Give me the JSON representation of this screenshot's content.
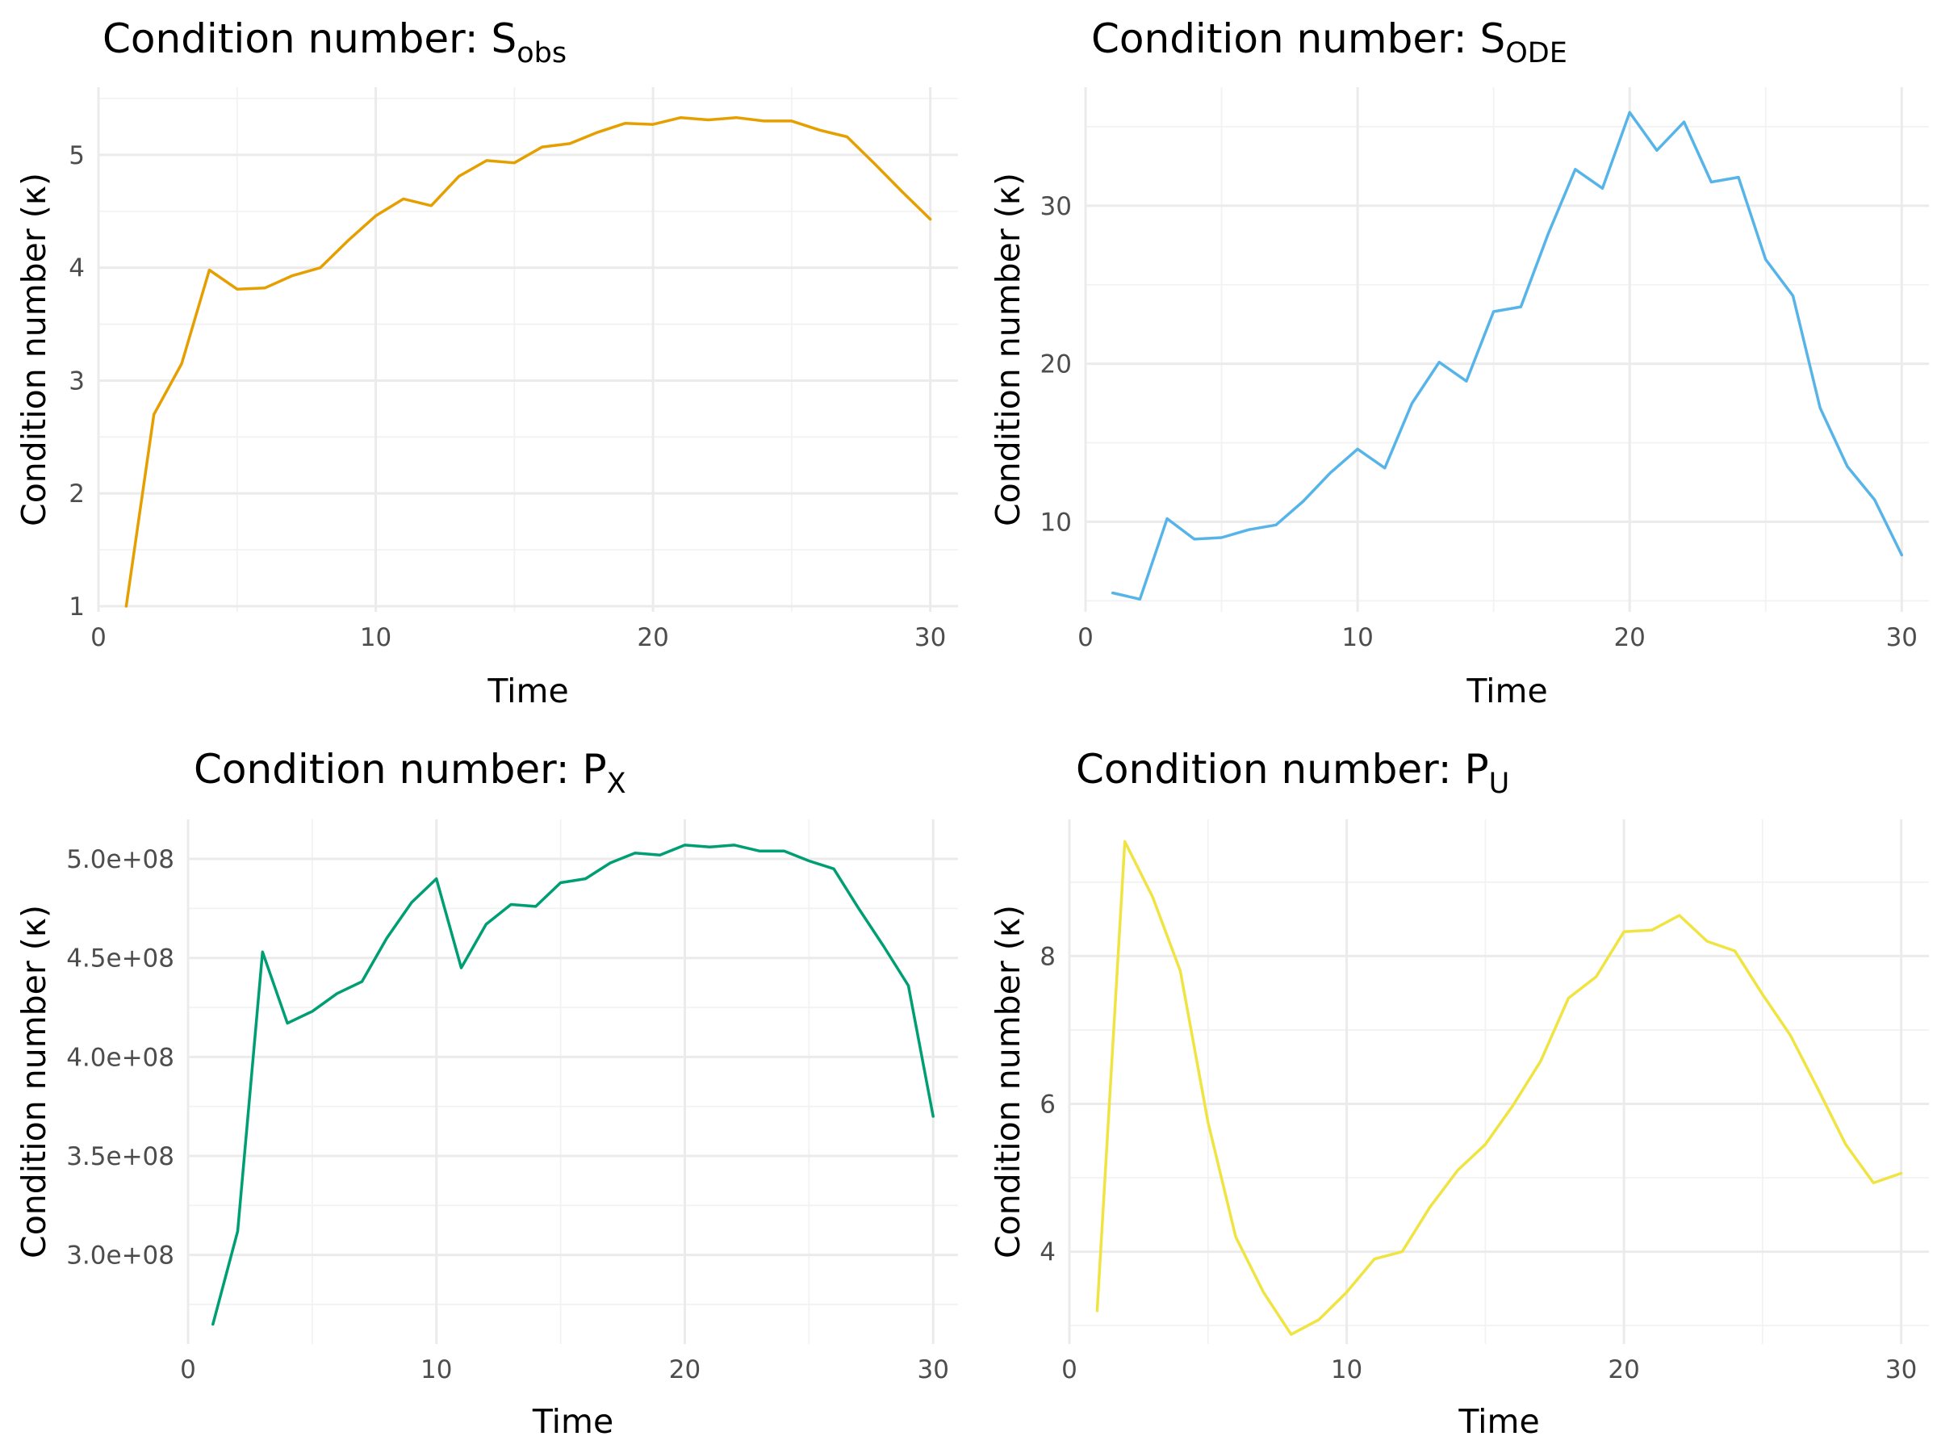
{
  "chart_data": [
    {
      "type": "line",
      "title": "Condition number: S",
      "title_sub": "obs",
      "xlabel": "Time",
      "ylabel": "Condition number (κ)",
      "xlim": [
        0,
        31
      ],
      "ylim": [
        0.95,
        5.6
      ],
      "xticks": [
        0,
        10,
        20,
        30
      ],
      "xtick_labels": [
        "0",
        "10",
        "20",
        "30"
      ],
      "yticks": [
        1,
        2,
        3,
        4,
        5
      ],
      "ytick_labels": [
        "1",
        "2",
        "3",
        "4",
        "5"
      ],
      "grid": true,
      "color": "#E69F00",
      "x": [
        1,
        2,
        3,
        4,
        5,
        6,
        7,
        8,
        9,
        10,
        11,
        12,
        13,
        14,
        15,
        16,
        17,
        18,
        19,
        20,
        21,
        22,
        23,
        24,
        25,
        26,
        27,
        28,
        29,
        30
      ],
      "values": [
        1.0,
        2.7,
        3.15,
        3.98,
        3.81,
        3.82,
        3.93,
        4.0,
        4.24,
        4.46,
        4.61,
        4.55,
        4.81,
        4.95,
        4.93,
        5.07,
        5.1,
        5.2,
        5.28,
        5.27,
        5.33,
        5.31,
        5.33,
        5.3,
        5.3,
        5.22,
        5.16,
        4.92,
        4.67,
        4.43
      ]
    },
    {
      "type": "line",
      "title": "Condition number: S",
      "title_sub": "ODE",
      "xlabel": "Time",
      "ylabel": "Condition number (κ)",
      "xlim": [
        0,
        31
      ],
      "ylim": [
        4.3,
        37.5
      ],
      "xticks": [
        0,
        10,
        20,
        30
      ],
      "xtick_labels": [
        "0",
        "10",
        "20",
        "30"
      ],
      "yticks": [
        10,
        20,
        30
      ],
      "ytick_labels": [
        "10",
        "20",
        "30"
      ],
      "grid": true,
      "color": "#56B4E9",
      "x": [
        1,
        2,
        3,
        4,
        5,
        6,
        7,
        8,
        9,
        10,
        11,
        12,
        13,
        14,
        15,
        16,
        17,
        18,
        19,
        20,
        21,
        22,
        23,
        24,
        25,
        26,
        27,
        28,
        29,
        30
      ],
      "values": [
        5.5,
        5.1,
        10.2,
        8.9,
        9.0,
        9.5,
        9.8,
        11.3,
        13.1,
        14.6,
        13.4,
        17.5,
        20.1,
        18.9,
        23.3,
        23.6,
        28.2,
        32.3,
        31.1,
        35.9,
        33.5,
        35.3,
        31.5,
        31.8,
        26.6,
        24.3,
        17.2,
        13.5,
        11.4,
        7.9
      ]
    },
    {
      "type": "line",
      "title": "Condition number: P",
      "title_sub": "X",
      "xlabel": "Time",
      "ylabel": "Condition number (κ)",
      "xlim": [
        0,
        31
      ],
      "ylim": [
        255000000.0,
        520000000.0
      ],
      "xticks": [
        0,
        10,
        20,
        30
      ],
      "xtick_labels": [
        "0",
        "10",
        "20",
        "30"
      ],
      "yticks": [
        300000000.0,
        350000000.0,
        400000000.0,
        450000000.0,
        500000000.0
      ],
      "ytick_labels": [
        "3.0e+08",
        "3.5e+08",
        "4.0e+08",
        "4.5e+08",
        "5.0e+08"
      ],
      "grid": true,
      "color": "#009E73",
      "x": [
        1,
        2,
        3,
        4,
        5,
        6,
        7,
        8,
        9,
        10,
        11,
        12,
        13,
        14,
        15,
        16,
        17,
        18,
        19,
        20,
        21,
        22,
        23,
        24,
        25,
        26,
        27,
        28,
        29,
        30
      ],
      "values": [
        265000000.0,
        312000000.0,
        453000000.0,
        417000000.0,
        423000000.0,
        432000000.0,
        438000000.0,
        460000000.0,
        478000000.0,
        490000000.0,
        445000000.0,
        467000000.0,
        477000000.0,
        476000000.0,
        488000000.0,
        490000000.0,
        498000000.0,
        503000000.0,
        502000000.0,
        507000000.0,
        506000000.0,
        507000000.0,
        504000000.0,
        504000000.0,
        499000000.0,
        495000000.0,
        475000000.0,
        456000000.0,
        436000000.0,
        370000000.0
      ]
    },
    {
      "type": "line",
      "title": "Condition number: P",
      "title_sub": "U",
      "xlabel": "Time",
      "ylabel": "Condition number (κ)",
      "xlim": [
        0,
        31
      ],
      "ylim": [
        2.75,
        9.85
      ],
      "xticks": [
        0,
        10,
        20,
        30
      ],
      "xtick_labels": [
        "0",
        "10",
        "20",
        "30"
      ],
      "yticks": [
        4,
        6,
        8
      ],
      "ytick_labels": [
        "4",
        "6",
        "8"
      ],
      "grid": true,
      "color": "#F0E442",
      "x": [
        1,
        2,
        3,
        4,
        5,
        6,
        7,
        8,
        9,
        10,
        11,
        12,
        13,
        14,
        15,
        16,
        17,
        18,
        19,
        20,
        21,
        22,
        23,
        24,
        25,
        26,
        27,
        28,
        29,
        30
      ],
      "values": [
        3.2,
        9.55,
        8.8,
        7.8,
        5.75,
        4.2,
        3.45,
        2.88,
        3.08,
        3.45,
        3.9,
        4.0,
        4.6,
        5.1,
        5.45,
        5.98,
        6.58,
        7.43,
        7.72,
        8.33,
        8.35,
        8.55,
        8.2,
        8.07,
        7.48,
        6.93,
        6.2,
        5.45,
        4.93,
        5.06
      ]
    }
  ]
}
